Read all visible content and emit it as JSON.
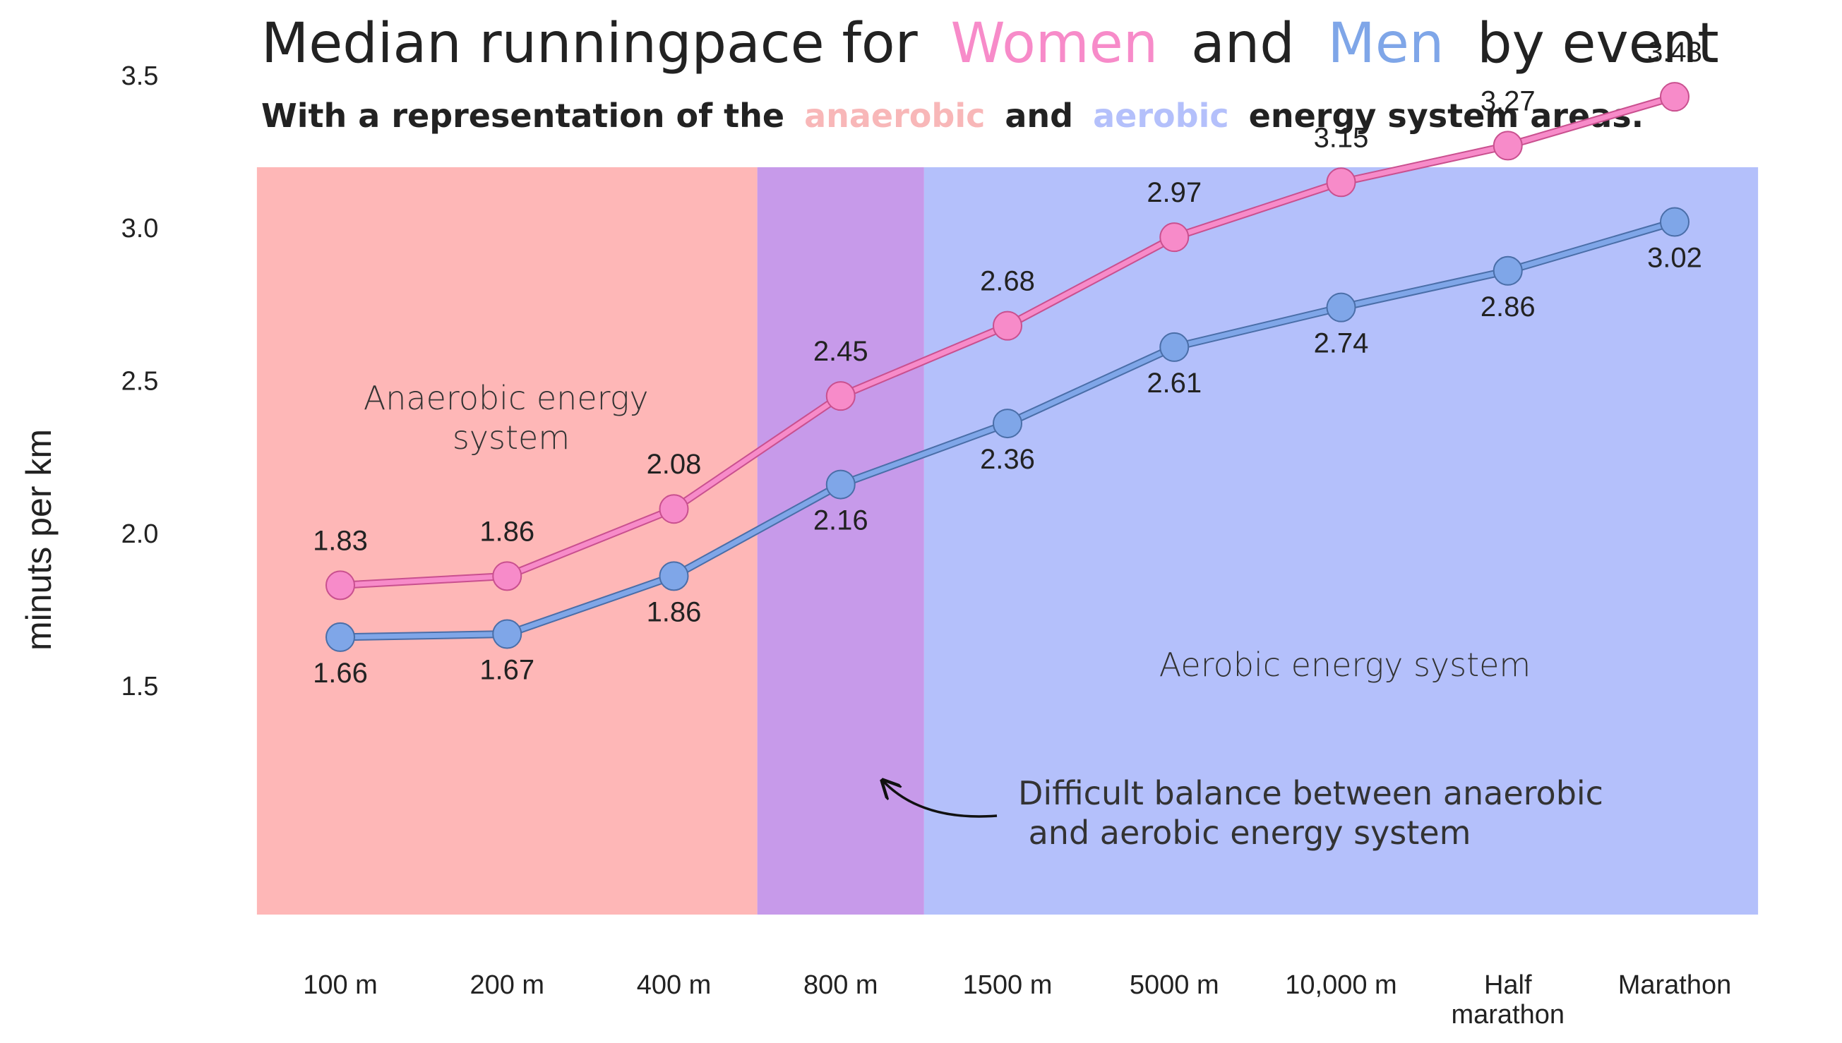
{
  "colors": {
    "women": "#f78bc9",
    "men": "#7fa6e8",
    "anaerobic_bg": "#feb7b7",
    "balance_bg": "#c79aea",
    "aerobic_bg": "#b4c0fb",
    "anaerobic_text": "#f8b7b8",
    "aerobic_text": "#b4c0fb"
  },
  "chart_data": {
    "type": "line",
    "title": {
      "prefix": "Median runningpace for",
      "women": "Women",
      "and": "and",
      "men": "Men",
      "suffix": "by event"
    },
    "subtitle": {
      "prefix": "With a representation of the",
      "anaerobic": "anaerobic",
      "and": "and",
      "aerobic": "aerobic",
      "suffix": "energy system areas."
    },
    "ylabel": "minuts per km",
    "ylim": [
      1.25,
      3.7
    ],
    "yticks": [
      "1.5",
      "2.0",
      "2.5",
      "3.0",
      "3.5"
    ],
    "grid": false,
    "categories": [
      "100 m",
      "200 m",
      "400 m",
      "800 m",
      "1500 m",
      "5000 m",
      "10,000 m",
      "Half marathon",
      "Marathon"
    ],
    "category_lines": [
      [
        "100 m"
      ],
      [
        "200 m"
      ],
      [
        "400 m"
      ],
      [
        "800 m"
      ],
      [
        "1500 m"
      ],
      [
        "5000 m"
      ],
      [
        "10,000 m"
      ],
      [
        "Half",
        "marathon"
      ],
      [
        "Marathon"
      ]
    ],
    "series": [
      {
        "name": "Women",
        "values": [
          1.83,
          1.86,
          2.08,
          2.45,
          2.68,
          2.97,
          3.15,
          3.27,
          3.43
        ]
      },
      {
        "name": "Men",
        "values": [
          1.66,
          1.67,
          1.86,
          2.16,
          2.36,
          2.61,
          2.74,
          2.86,
          3.02
        ]
      }
    ],
    "regions": [
      {
        "name": "anaerobic",
        "from_index": -0.5,
        "to_index": 2.5
      },
      {
        "name": "balance",
        "from_index": 2.5,
        "to_index": 3.5
      },
      {
        "name": "aerobic",
        "from_index": 3.5,
        "to_index": 8.5
      }
    ],
    "annotations": {
      "anaerobic": [
        "Anaerobic energy",
        "system"
      ],
      "aerobic": "Aerobic energy system",
      "balance": [
        "Difficult balance between anaerobic",
        " and aerobic energy system"
      ]
    }
  }
}
